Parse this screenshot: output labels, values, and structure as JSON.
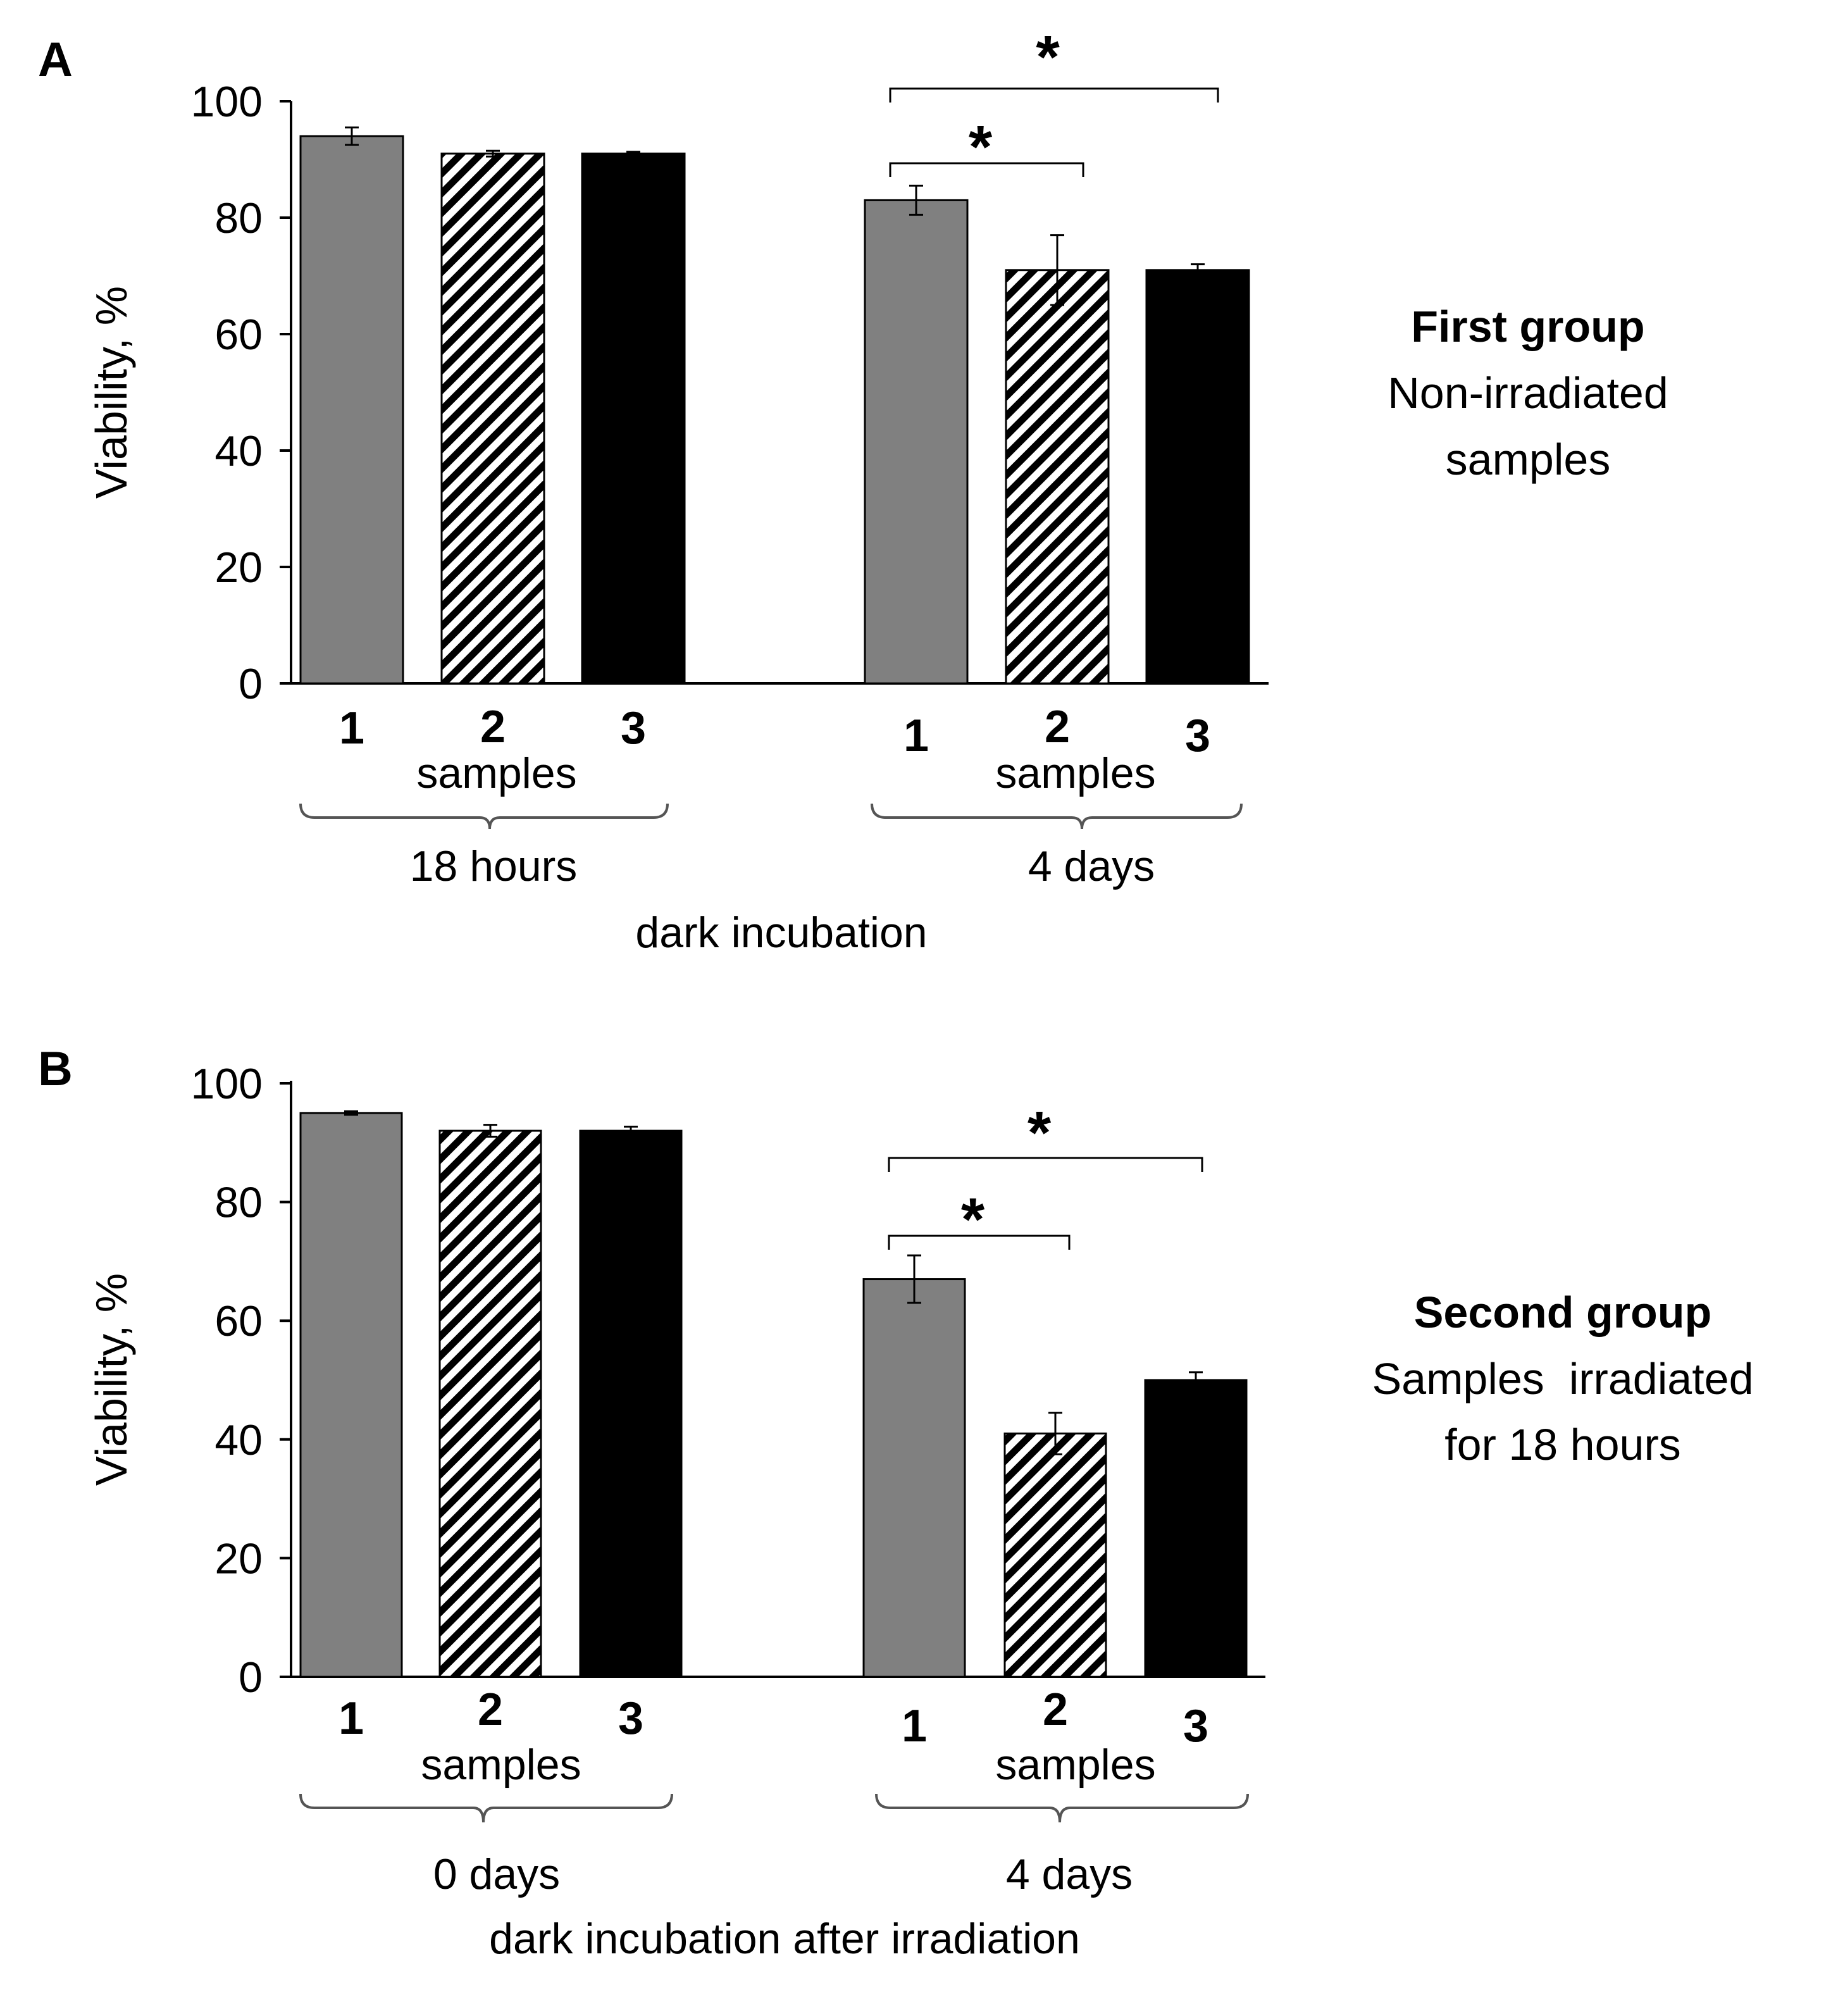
{
  "colors": {
    "sample1": "#808080",
    "sample2_hatch": "#000000",
    "sample3": "#000000",
    "axis": "#000000",
    "brace": "#555555"
  },
  "chart_data": [
    {
      "type": "bar",
      "panel_label": "A",
      "title_bold": "First group",
      "title_lines": [
        "Non-irradiated",
        "samples"
      ],
      "ylabel": "Viability, %",
      "ylim": [
        0,
        100
      ],
      "yticks": [
        0,
        20,
        40,
        60,
        80,
        100
      ],
      "sample_label": "samples",
      "footer": "dark incubation",
      "series_style": [
        "gray",
        "hatched",
        "black"
      ],
      "groups": [
        {
          "label": "18 hours",
          "categories": [
            "1",
            "2",
            "3"
          ],
          "values": [
            94,
            91,
            91
          ],
          "errors": [
            1.5,
            0.5,
            0.3
          ]
        },
        {
          "label": "4 days",
          "categories": [
            "1",
            "2",
            "3"
          ],
          "values": [
            83,
            71,
            71
          ],
          "errors": [
            2.5,
            6,
            1
          ]
        }
      ],
      "significance": [
        {
          "from": 0,
          "to": 1,
          "label": "*"
        },
        {
          "from": 0,
          "to": 2,
          "label": "*"
        }
      ]
    },
    {
      "type": "bar",
      "panel_label": "B",
      "title_bold": "Second group",
      "title_lines": [
        "Samples  irradiated",
        "for 18 hours"
      ],
      "ylabel": "Viability, %",
      "ylim": [
        0,
        100
      ],
      "yticks": [
        0,
        20,
        40,
        60,
        80,
        100
      ],
      "sample_label": "samples",
      "footer": "dark incubation after irradiation",
      "series_style": [
        "gray",
        "hatched",
        "black"
      ],
      "groups": [
        {
          "label": "0 days",
          "categories": [
            "1",
            "2",
            "3"
          ],
          "values": [
            95,
            92,
            92
          ],
          "errors": [
            0.3,
            1,
            0.7
          ]
        },
        {
          "label": "4 days",
          "categories": [
            "1",
            "2",
            "3"
          ],
          "values": [
            67,
            41,
            50
          ],
          "errors": [
            4,
            3.5,
            1.3
          ]
        }
      ],
      "significance": [
        {
          "from": 0,
          "to": 1,
          "label": "*"
        },
        {
          "from": 0,
          "to": 2,
          "label": "*"
        }
      ]
    }
  ]
}
